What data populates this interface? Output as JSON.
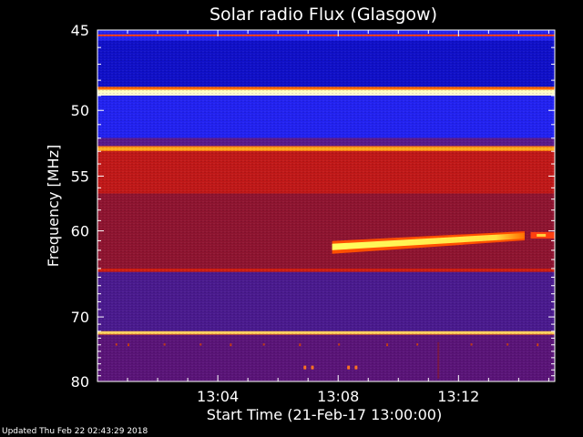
{
  "chart_data": {
    "type": "heatmap",
    "title": "Solar radio Flux (Glasgow)",
    "xlabel": "Start Time (21-Feb-17 13:00:00)",
    "ylabel": "Frequency [MHz]",
    "x_unit": "minutes after 13:00:00",
    "xlim": [
      0,
      15.2
    ],
    "ylim": [
      45,
      80
    ],
    "y_scale": "reciprocal",
    "x_tick_labels": [
      "13:04",
      "13:08",
      "13:12"
    ],
    "x_ticks": [
      4,
      8,
      12
    ],
    "y_ticks": [
      45,
      50,
      55,
      60,
      70,
      80
    ],
    "y_tick_labels": [
      "45",
      "50",
      "55",
      "60",
      "70",
      "80"
    ],
    "colormap": [
      "#000000",
      "#3a1a9a",
      "#0000ff",
      "#8a1020",
      "#c01010",
      "#ff3000",
      "#ff9a00",
      "#ffff60",
      "#ffffff"
    ],
    "frequency_bands": [
      {
        "from": 45,
        "to": 45.6,
        "level": "blue"
      },
      {
        "from": 45.6,
        "to": 48.5,
        "level": "deep-blue"
      },
      {
        "from": 48.5,
        "to": 49.0,
        "level": "white"
      },
      {
        "from": 49.0,
        "to": 52.0,
        "level": "blue"
      },
      {
        "from": 52.0,
        "to": 52.6,
        "level": "blue-red"
      },
      {
        "from": 52.6,
        "to": 53.0,
        "level": "orange"
      },
      {
        "from": 53.0,
        "to": 56.5,
        "level": "red"
      },
      {
        "from": 56.5,
        "to": 64.0,
        "level": "dark-red"
      },
      {
        "from": 64.0,
        "to": 64.4,
        "level": "red-stripe"
      },
      {
        "from": 64.4,
        "to": 72.0,
        "level": "purple"
      },
      {
        "from": 72.0,
        "to": 72.5,
        "level": "orange"
      },
      {
        "from": 72.5,
        "to": 80.0,
        "level": "purple-red"
      }
    ],
    "burst_event": {
      "time_start": 7.8,
      "time_end": 14.2,
      "frequency_start": 61.6,
      "frequency_end": 60.5,
      "peak_color": "#ffff80"
    }
  },
  "footer": {
    "updated": "Updated Thu Feb 22 02:43:29 2018"
  }
}
